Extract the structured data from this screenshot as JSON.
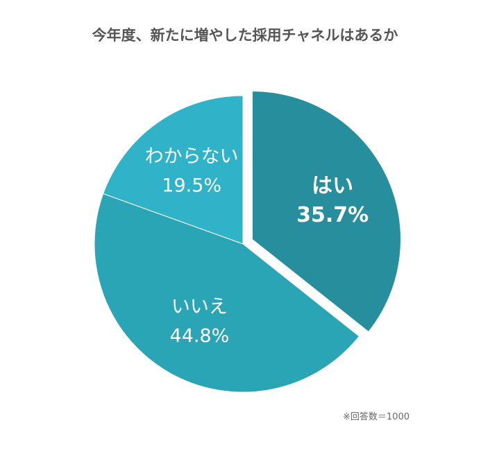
{
  "chart_data": {
    "type": "pie",
    "title": "今年度、新たに増やした採用チャネルはあるか",
    "categories": [
      "はい",
      "いいえ",
      "わからない"
    ],
    "values": [
      35.7,
      44.8,
      19.5
    ],
    "value_labels": [
      "35.7%",
      "44.8%",
      "19.5%"
    ],
    "colors": [
      "#268e9c",
      "#2aa5b5",
      "#30b3c8"
    ],
    "explode": [
      true,
      false,
      false
    ],
    "note": "※回答数＝1000"
  }
}
